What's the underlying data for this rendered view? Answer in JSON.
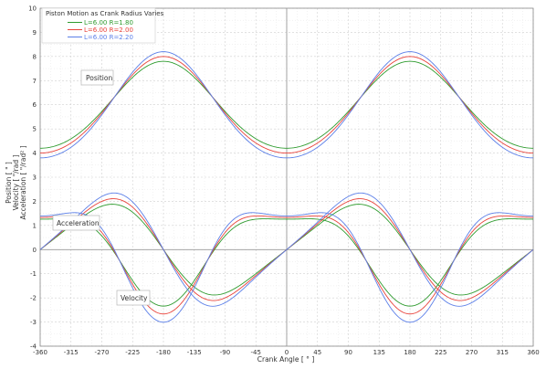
{
  "chart_data": {
    "type": "line",
    "title": "Piston Motion as Crank Radius Varies",
    "xlabel": "Crank Angle  [ ° ]",
    "ylabel": [
      "Position  [ \" ]",
      "Velocity  [ \"/rad ]",
      "Acceleration  [ \"/rad² ]"
    ],
    "xlim": [
      -360,
      360
    ],
    "ylim": [
      -4,
      10
    ],
    "x_ticks": [
      "-360",
      "-315",
      "-270",
      "-225",
      "-180",
      "-135",
      "-90",
      "-45",
      "0",
      "45",
      "90",
      "135",
      "180",
      "225",
      "270",
      "315",
      "360"
    ],
    "y_ticks": [
      "-4",
      "-3",
      "-2",
      "-1",
      "0",
      "1",
      "2",
      "3",
      "4",
      "5",
      "6",
      "7",
      "8",
      "9",
      "10"
    ],
    "grid": true,
    "legend_position": "top-left",
    "annotations": [
      "Position",
      "Acceleration",
      "Velocity"
    ],
    "series": [
      {
        "name": "L=6.00  R=1.80",
        "color": "#2e9b2e",
        "R": 1.8,
        "L": 6.0
      },
      {
        "name": "L=6.00  R=2.00",
        "color": "#e8423a",
        "R": 2.0,
        "L": 6.0
      },
      {
        "name": "L=6.00  R=2.20",
        "color": "#5b7fe8",
        "R": 2.2,
        "L": 6.0
      }
    ]
  }
}
